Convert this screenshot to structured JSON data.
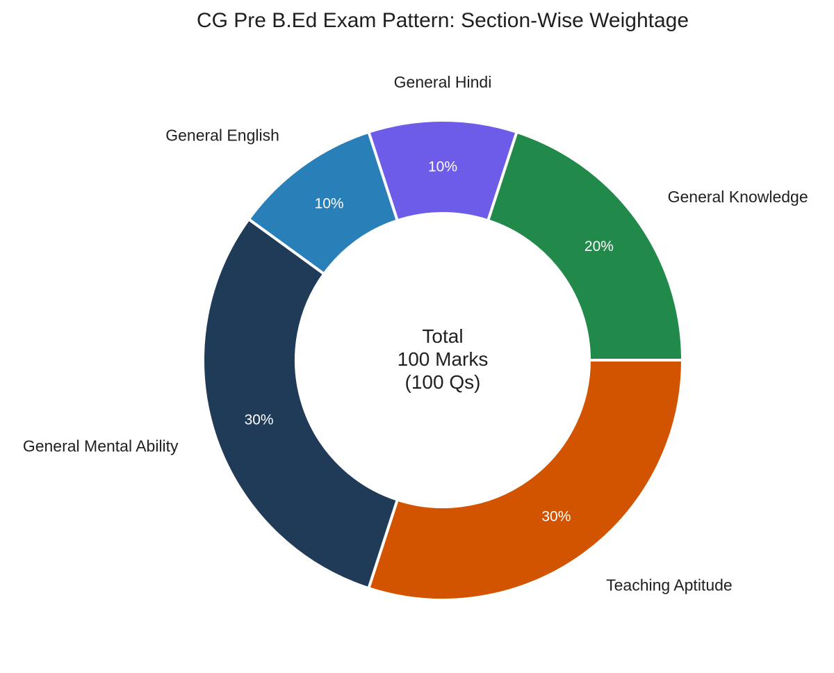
{
  "chart_data": {
    "type": "pie",
    "title": "CG Pre B.Ed Exam Pattern: Section-Wise Weightage",
    "categories": [
      "General Hindi",
      "General Knowledge",
      "Teaching Aptitude",
      "General Mental Ability",
      "General English"
    ],
    "values": [
      10,
      20,
      30,
      30,
      10
    ],
    "value_labels": [
      "10%",
      "20%",
      "30%",
      "30%",
      "10%"
    ],
    "colors": [
      "#6c5ce7",
      "#218a4b",
      "#d35400",
      "#1f3b57",
      "#2980b9"
    ],
    "center_text": [
      "Total",
      "100 Marks",
      "(100 Qs)"
    ],
    "hole": "donut",
    "legend": "none"
  }
}
